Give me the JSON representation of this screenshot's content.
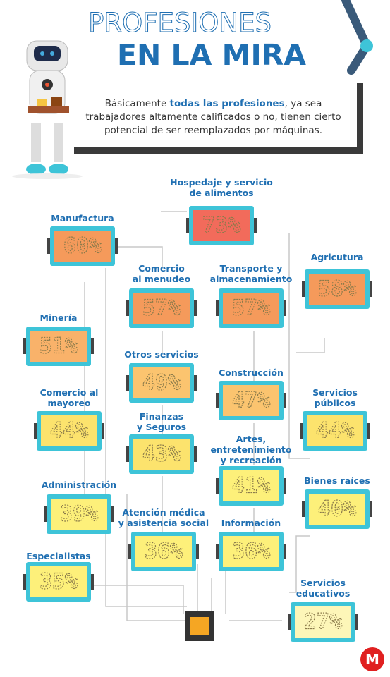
{
  "header": {
    "title_line_1": "PROFESIONES",
    "title_line_2": "EN LA MIRA"
  },
  "intro": [
    "Básicamente ",
    "todas las profesiones",
    ", ya sea trabajadores altamente calificados o no, tienen cierto potencial de ser reemplazados por máquinas."
  ],
  "items": [
    {
      "label": [
        "Hospedaje y servicio",
        "de alimentos"
      ],
      "value": "73%"
    },
    {
      "label": [
        "Manufactura"
      ],
      "value": "60%"
    },
    {
      "label": [
        "Comercio",
        "al menudeo"
      ],
      "value": "57%"
    },
    {
      "label": [
        "Transporte y",
        "almacenamiento"
      ],
      "value": "57%"
    },
    {
      "label": [
        "Agricutura"
      ],
      "value": "58%"
    },
    {
      "label": [
        "Minería"
      ],
      "value": "51%"
    },
    {
      "label": [
        "Otros servicios"
      ],
      "value": "49%"
    },
    {
      "label": [
        "Construcción"
      ],
      "value": "47%"
    },
    {
      "label": [
        "Comercio al",
        "mayoreo"
      ],
      "value": "44%"
    },
    {
      "label": [
        "Servicios",
        "públicos"
      ],
      "value": "44%"
    },
    {
      "label": [
        "Finanzas",
        "y Seguros"
      ],
      "value": "43%"
    },
    {
      "label": [
        "Artes,",
        "entretenimiento",
        "y recreación"
      ],
      "value": "41%"
    },
    {
      "label": [
        "Bienes raíces"
      ],
      "value": "40%"
    },
    {
      "label": [
        "Administración"
      ],
      "value": "39%"
    },
    {
      "label": [
        "Atención médica",
        "y asistencia social"
      ],
      "value": "36%"
    },
    {
      "label": [
        "Información"
      ],
      "value": "36%"
    },
    {
      "label": [
        "Especialistas"
      ],
      "value": "35%"
    },
    {
      "label": [
        "Servicios",
        "educativos"
      ],
      "value": "27%"
    }
  ],
  "logo": "M"
}
